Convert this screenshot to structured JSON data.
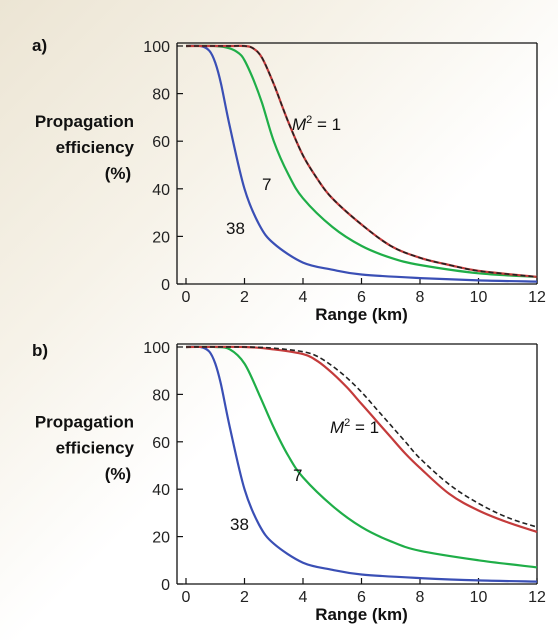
{
  "chart_data": [
    {
      "panel_label": "a)",
      "type": "line",
      "xlabel": "Range (km)",
      "ylabel": [
        "Propagation",
        "efficiency",
        "(%)"
      ],
      "xlim": [
        0,
        12
      ],
      "ylim": [
        0,
        100
      ],
      "xticks": [
        0,
        2,
        4,
        6,
        8,
        10,
        12
      ],
      "yticks": [
        0,
        20,
        40,
        60,
        80,
        100
      ],
      "grid": false,
      "series": [
        {
          "label": "38",
          "color": "#3a4fb5",
          "dashed": false,
          "x": [
            0,
            0.5,
            0.8,
            1.0,
            1.2,
            1.5,
            2.0,
            2.5,
            3.0,
            4.0,
            5.0,
            6.0,
            8.0,
            10.0,
            12.0
          ],
          "y": [
            100,
            100,
            98,
            93,
            84,
            66,
            40,
            25,
            17,
            9,
            6,
            4,
            2.5,
            1.5,
            1
          ]
        },
        {
          "label": "7",
          "color": "#1fae48",
          "dashed": false,
          "x": [
            0,
            1.0,
            1.5,
            1.8,
            2.0,
            2.3,
            2.6,
            3.0,
            3.5,
            4.0,
            5.0,
            6.0,
            7.0,
            8.0,
            10.0,
            12.0
          ],
          "y": [
            100,
            100,
            99,
            97,
            94,
            86,
            76,
            60,
            46,
            36,
            24,
            16,
            11,
            8,
            4.5,
            3
          ]
        },
        {
          "label": "M² = 1",
          "label_italic_M": true,
          "color": "#c43b3b",
          "dashed": false,
          "x": [
            0,
            1.5,
            2.0,
            2.3,
            2.6,
            3.0,
            3.5,
            4.0,
            4.5,
            5.0,
            6.0,
            7.0,
            8.0,
            9.0,
            10.0,
            12.0
          ],
          "y": [
            100,
            100,
            100,
            99,
            95,
            84,
            68,
            54,
            44,
            36,
            25,
            16,
            11,
            8,
            5.5,
            3
          ]
        },
        {
          "label": "",
          "color": "#222222",
          "dashed": true,
          "x": [
            0,
            1.5,
            2.0,
            2.3,
            2.6,
            3.0,
            3.5,
            4.0,
            4.5,
            5.0,
            6.0,
            7.0,
            8.0,
            9.0,
            10.0,
            12.0
          ],
          "y": [
            100,
            100,
            100,
            99,
            95,
            84,
            68,
            54,
            44,
            36,
            25,
            16,
            11,
            8,
            5.5,
            3
          ]
        }
      ]
    },
    {
      "panel_label": "b)",
      "type": "line",
      "xlabel": "Range (km)",
      "ylabel": [
        "Propagation",
        "efficiency",
        "(%)"
      ],
      "xlim": [
        0,
        12
      ],
      "ylim": [
        0,
        100
      ],
      "xticks": [
        0,
        2,
        4,
        6,
        8,
        10,
        12
      ],
      "yticks": [
        0,
        20,
        40,
        60,
        80,
        100
      ],
      "grid": false,
      "series": [
        {
          "label": "38",
          "color": "#3a4fb5",
          "dashed": false,
          "x": [
            0,
            0.5,
            0.8,
            1.0,
            1.2,
            1.5,
            2.0,
            2.5,
            3.0,
            4.0,
            5.0,
            6.0,
            8.0,
            10.0,
            12.0
          ],
          "y": [
            100,
            100,
            98,
            93,
            84,
            66,
            40,
            25,
            17,
            9,
            6,
            4,
            2.5,
            1.5,
            1
          ]
        },
        {
          "label": "7",
          "color": "#1fae48",
          "dashed": false,
          "x": [
            0,
            1.0,
            1.5,
            2.0,
            2.5,
            3.0,
            3.5,
            4.0,
            5.0,
            6.0,
            7.0,
            8.0,
            10.0,
            12.0
          ],
          "y": [
            100,
            100,
            99,
            93,
            80,
            66,
            54,
            45,
            33,
            24,
            18,
            14,
            10,
            7
          ]
        },
        {
          "label": "M² = 1",
          "label_italic_M": true,
          "color": "#c43b3b",
          "dashed": false,
          "x": [
            0,
            2.0,
            3.0,
            4.0,
            4.5,
            5.0,
            5.5,
            6.0,
            6.5,
            7.0,
            7.5,
            8.0,
            9.0,
            10.0,
            11.0,
            12.0
          ],
          "y": [
            100,
            100,
            99,
            97,
            94,
            89,
            83,
            76,
            69,
            62,
            55,
            49,
            38,
            31,
            26,
            22
          ]
        },
        {
          "label": "",
          "color": "#222222",
          "dashed": true,
          "x": [
            0,
            2.0,
            3.0,
            4.0,
            4.5,
            5.0,
            5.5,
            6.0,
            6.5,
            7.0,
            7.5,
            8.0,
            9.0,
            10.0,
            11.0,
            12.0
          ],
          "y": [
            100,
            100,
            99.5,
            98,
            96,
            92,
            87,
            81,
            74,
            67,
            60,
            53,
            42,
            34,
            28,
            24
          ]
        }
      ]
    }
  ]
}
